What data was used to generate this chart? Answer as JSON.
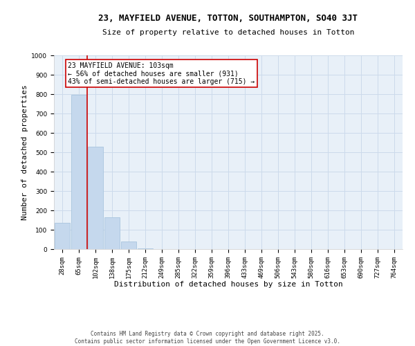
{
  "title": "23, MAYFIELD AVENUE, TOTTON, SOUTHAMPTON, SO40 3JT",
  "subtitle": "Size of property relative to detached houses in Totton",
  "xlabel": "Distribution of detached houses by size in Totton",
  "ylabel": "Number of detached properties",
  "bar_labels": [
    "28sqm",
    "65sqm",
    "102sqm",
    "138sqm",
    "175sqm",
    "212sqm",
    "249sqm",
    "285sqm",
    "322sqm",
    "359sqm",
    "396sqm",
    "433sqm",
    "469sqm",
    "506sqm",
    "543sqm",
    "580sqm",
    "616sqm",
    "653sqm",
    "690sqm",
    "727sqm",
    "764sqm"
  ],
  "bar_values": [
    135,
    795,
    530,
    163,
    40,
    5,
    0,
    0,
    0,
    0,
    0,
    0,
    0,
    0,
    0,
    0,
    0,
    0,
    0,
    0,
    0
  ],
  "bar_color": "#c5d8ed",
  "bar_edge_color": "#a8c4de",
  "vline_color": "#cc0000",
  "vline_pos": 1.5,
  "ylim": [
    0,
    1000
  ],
  "yticks": [
    0,
    100,
    200,
    300,
    400,
    500,
    600,
    700,
    800,
    900,
    1000
  ],
  "annotation_title": "23 MAYFIELD AVENUE: 103sqm",
  "annotation_line1": "← 56% of detached houses are smaller (931)",
  "annotation_line2": "43% of semi-detached houses are larger (715) →",
  "annotation_box_color": "#ffffff",
  "annotation_box_edge": "#cc0000",
  "footer_line1": "Contains HM Land Registry data © Crown copyright and database right 2025.",
  "footer_line2": "Contains public sector information licensed under the Open Government Licence v3.0.",
  "background_color": "#ffffff",
  "grid_color": "#ccdaeb",
  "axes_bg_color": "#e8f0f8",
  "title_fontsize": 9,
  "subtitle_fontsize": 8,
  "tick_fontsize": 6.5,
  "label_fontsize": 8,
  "annotation_fontsize": 7,
  "footer_fontsize": 5.5
}
